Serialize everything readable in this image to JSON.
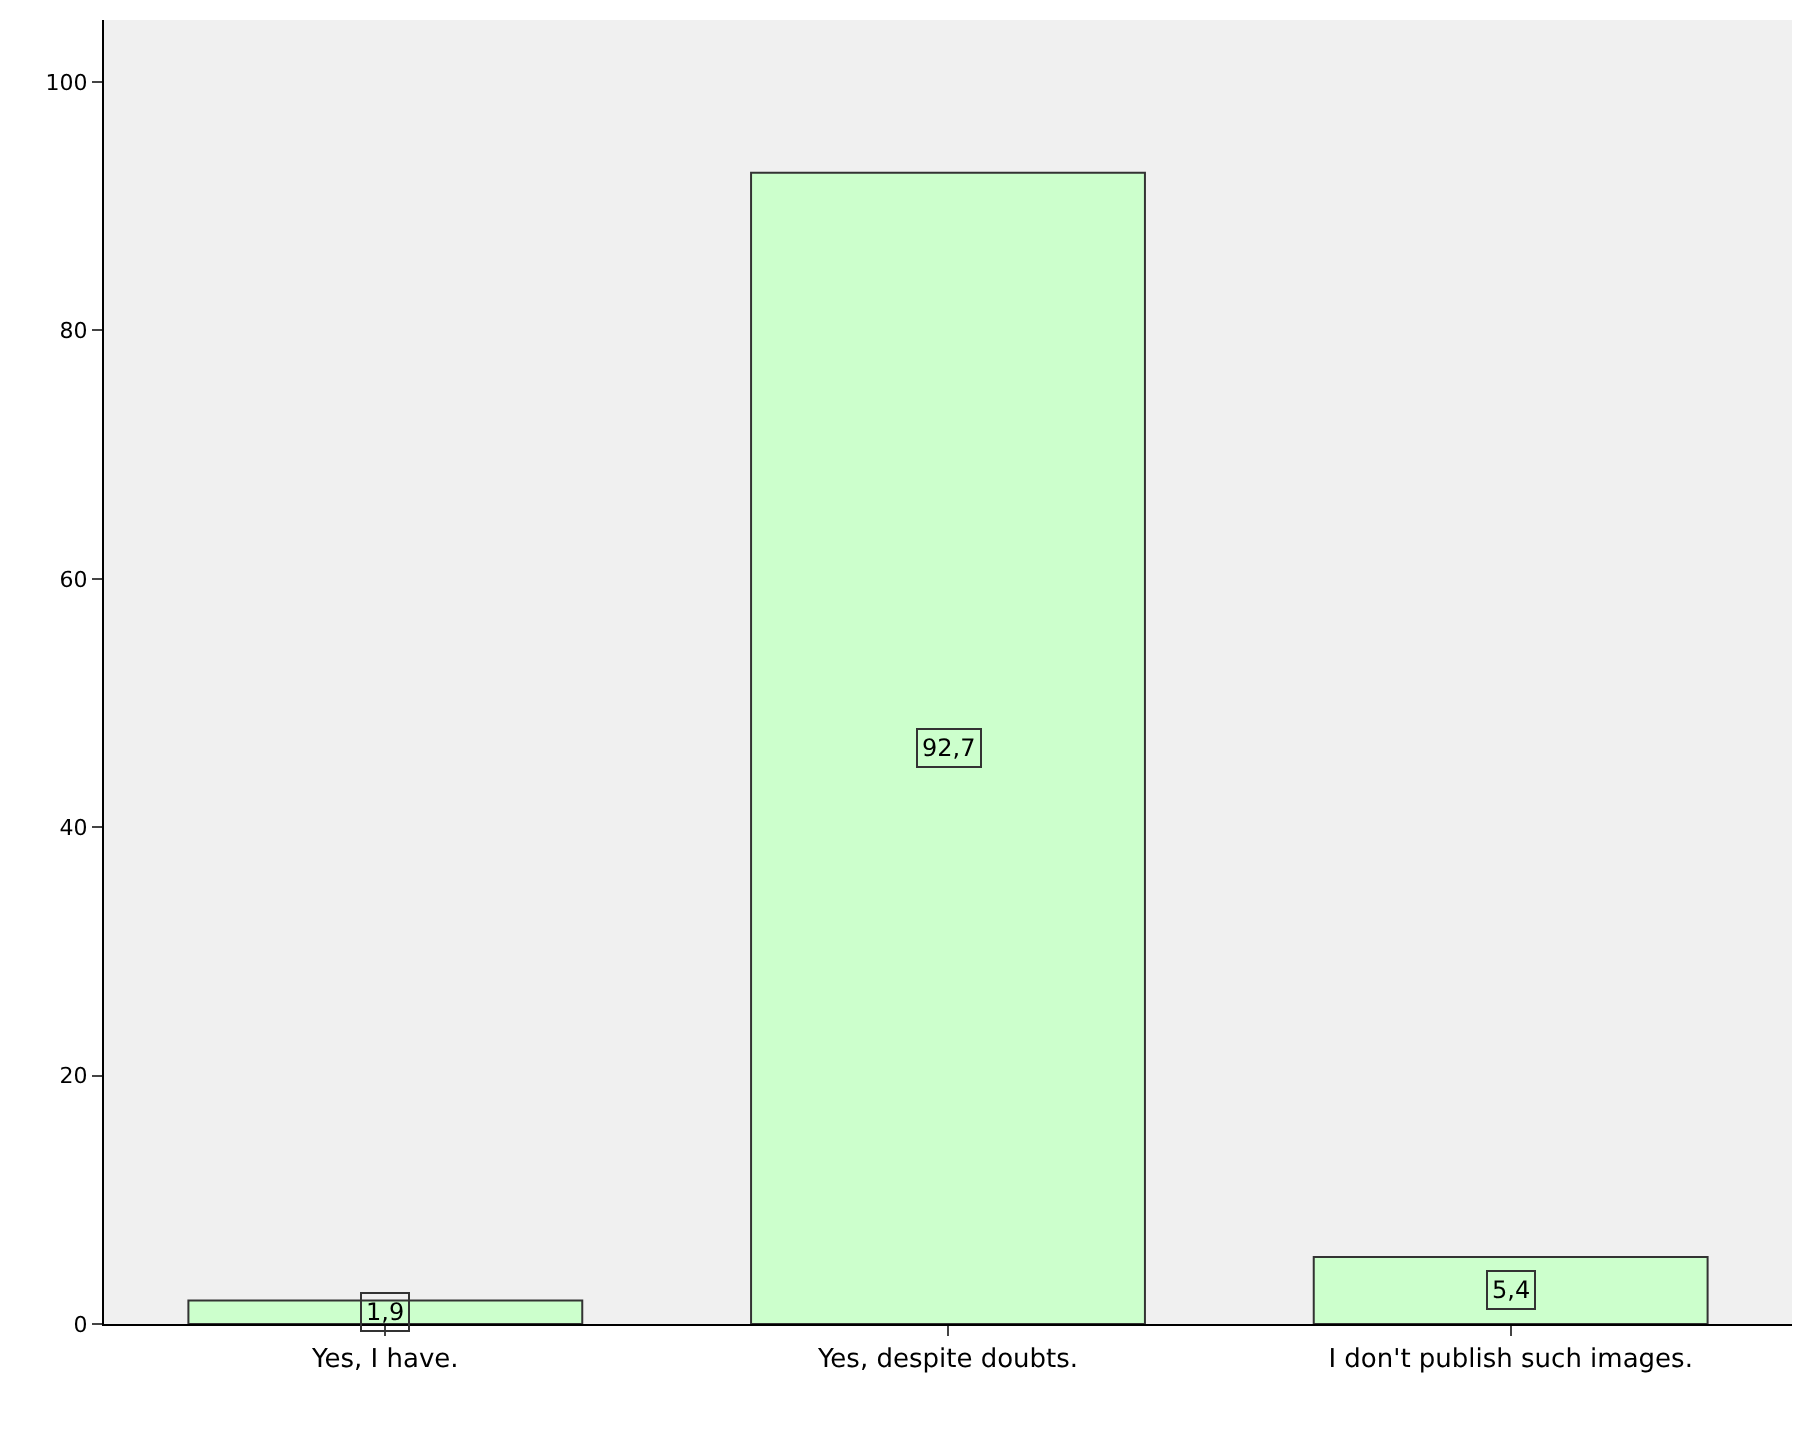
{
  "chart_data": {
    "type": "bar",
    "categories": [
      "Yes, I have.",
      "Yes, despite doubts.",
      "I don't publish such images."
    ],
    "values": [
      1.9,
      92.7,
      5.4
    ],
    "value_labels": [
      "1,9",
      "92,7",
      "5,4"
    ],
    "color": "#ccffcc",
    "ylim": [
      0,
      105
    ],
    "yticks": [
      0,
      20,
      40,
      60,
      80,
      100
    ],
    "grid": false
  }
}
